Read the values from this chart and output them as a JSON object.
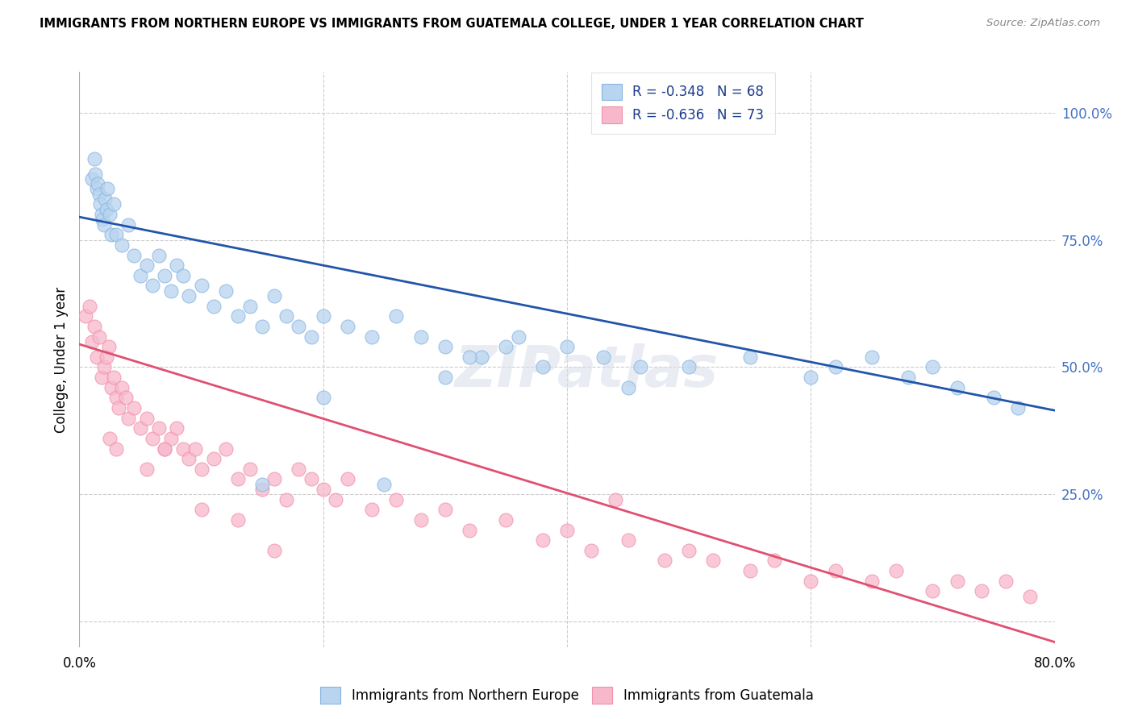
{
  "title": "IMMIGRANTS FROM NORTHERN EUROPE VS IMMIGRANTS FROM GUATEMALA COLLEGE, UNDER 1 YEAR CORRELATION CHART",
  "source": "Source: ZipAtlas.com",
  "blue_label": "Immigrants from Northern Europe",
  "pink_label": "Immigrants from Guatemala",
  "blue_R": -0.348,
  "blue_N": 68,
  "pink_R": -0.636,
  "pink_N": 73,
  "blue_line_y0": 0.795,
  "blue_line_y1": 0.415,
  "pink_line_y0": 0.545,
  "pink_line_y1": -0.04,
  "xmin": 0.0,
  "xmax": 80.0,
  "ymin": -0.05,
  "ymax": 1.08,
  "blue_scatter_x": [
    1.0,
    1.2,
    1.3,
    1.4,
    1.5,
    1.6,
    1.7,
    1.8,
    1.9,
    2.0,
    2.1,
    2.2,
    2.3,
    2.5,
    2.6,
    2.8,
    3.0,
    3.5,
    4.0,
    4.5,
    5.0,
    5.5,
    6.0,
    6.5,
    7.0,
    7.5,
    8.0,
    8.5,
    9.0,
    10.0,
    11.0,
    12.0,
    13.0,
    14.0,
    15.0,
    16.0,
    17.0,
    18.0,
    19.0,
    20.0,
    22.0,
    24.0,
    26.0,
    28.0,
    30.0,
    33.0,
    36.0,
    40.0,
    43.0,
    46.0,
    30.0,
    32.0,
    35.0,
    38.0,
    45.0,
    50.0,
    55.0,
    60.0,
    62.0,
    65.0,
    68.0,
    70.0,
    72.0,
    75.0,
    77.0,
    25.0,
    20.0,
    15.0
  ],
  "blue_scatter_y": [
    0.87,
    0.91,
    0.88,
    0.85,
    0.86,
    0.84,
    0.82,
    0.8,
    0.79,
    0.78,
    0.83,
    0.81,
    0.85,
    0.8,
    0.76,
    0.82,
    0.76,
    0.74,
    0.78,
    0.72,
    0.68,
    0.7,
    0.66,
    0.72,
    0.68,
    0.65,
    0.7,
    0.68,
    0.64,
    0.66,
    0.62,
    0.65,
    0.6,
    0.62,
    0.58,
    0.64,
    0.6,
    0.58,
    0.56,
    0.6,
    0.58,
    0.56,
    0.6,
    0.56,
    0.54,
    0.52,
    0.56,
    0.54,
    0.52,
    0.5,
    0.48,
    0.52,
    0.54,
    0.5,
    0.46,
    0.5,
    0.52,
    0.48,
    0.5,
    0.52,
    0.48,
    0.5,
    0.46,
    0.44,
    0.42,
    0.27,
    0.44,
    0.27
  ],
  "pink_scatter_x": [
    0.5,
    0.8,
    1.0,
    1.2,
    1.4,
    1.6,
    1.8,
    2.0,
    2.2,
    2.4,
    2.6,
    2.8,
    3.0,
    3.2,
    3.5,
    3.8,
    4.0,
    4.5,
    5.0,
    5.5,
    6.0,
    6.5,
    7.0,
    7.5,
    8.0,
    8.5,
    9.0,
    9.5,
    10.0,
    11.0,
    12.0,
    13.0,
    14.0,
    15.0,
    16.0,
    17.0,
    18.0,
    19.0,
    20.0,
    21.0,
    22.0,
    24.0,
    26.0,
    28.0,
    30.0,
    32.0,
    35.0,
    38.0,
    40.0,
    42.0,
    45.0,
    48.0,
    50.0,
    52.0,
    55.0,
    57.0,
    60.0,
    62.0,
    65.0,
    67.0,
    70.0,
    72.0,
    74.0,
    76.0,
    78.0,
    44.0,
    2.5,
    3.0,
    5.5,
    7.0,
    10.0,
    13.0,
    16.0
  ],
  "pink_scatter_y": [
    0.6,
    0.62,
    0.55,
    0.58,
    0.52,
    0.56,
    0.48,
    0.5,
    0.52,
    0.54,
    0.46,
    0.48,
    0.44,
    0.42,
    0.46,
    0.44,
    0.4,
    0.42,
    0.38,
    0.4,
    0.36,
    0.38,
    0.34,
    0.36,
    0.38,
    0.34,
    0.32,
    0.34,
    0.3,
    0.32,
    0.34,
    0.28,
    0.3,
    0.26,
    0.28,
    0.24,
    0.3,
    0.28,
    0.26,
    0.24,
    0.28,
    0.22,
    0.24,
    0.2,
    0.22,
    0.18,
    0.2,
    0.16,
    0.18,
    0.14,
    0.16,
    0.12,
    0.14,
    0.12,
    0.1,
    0.12,
    0.08,
    0.1,
    0.08,
    0.1,
    0.06,
    0.08,
    0.06,
    0.08,
    0.05,
    0.24,
    0.36,
    0.34,
    0.3,
    0.34,
    0.22,
    0.2,
    0.14
  ]
}
